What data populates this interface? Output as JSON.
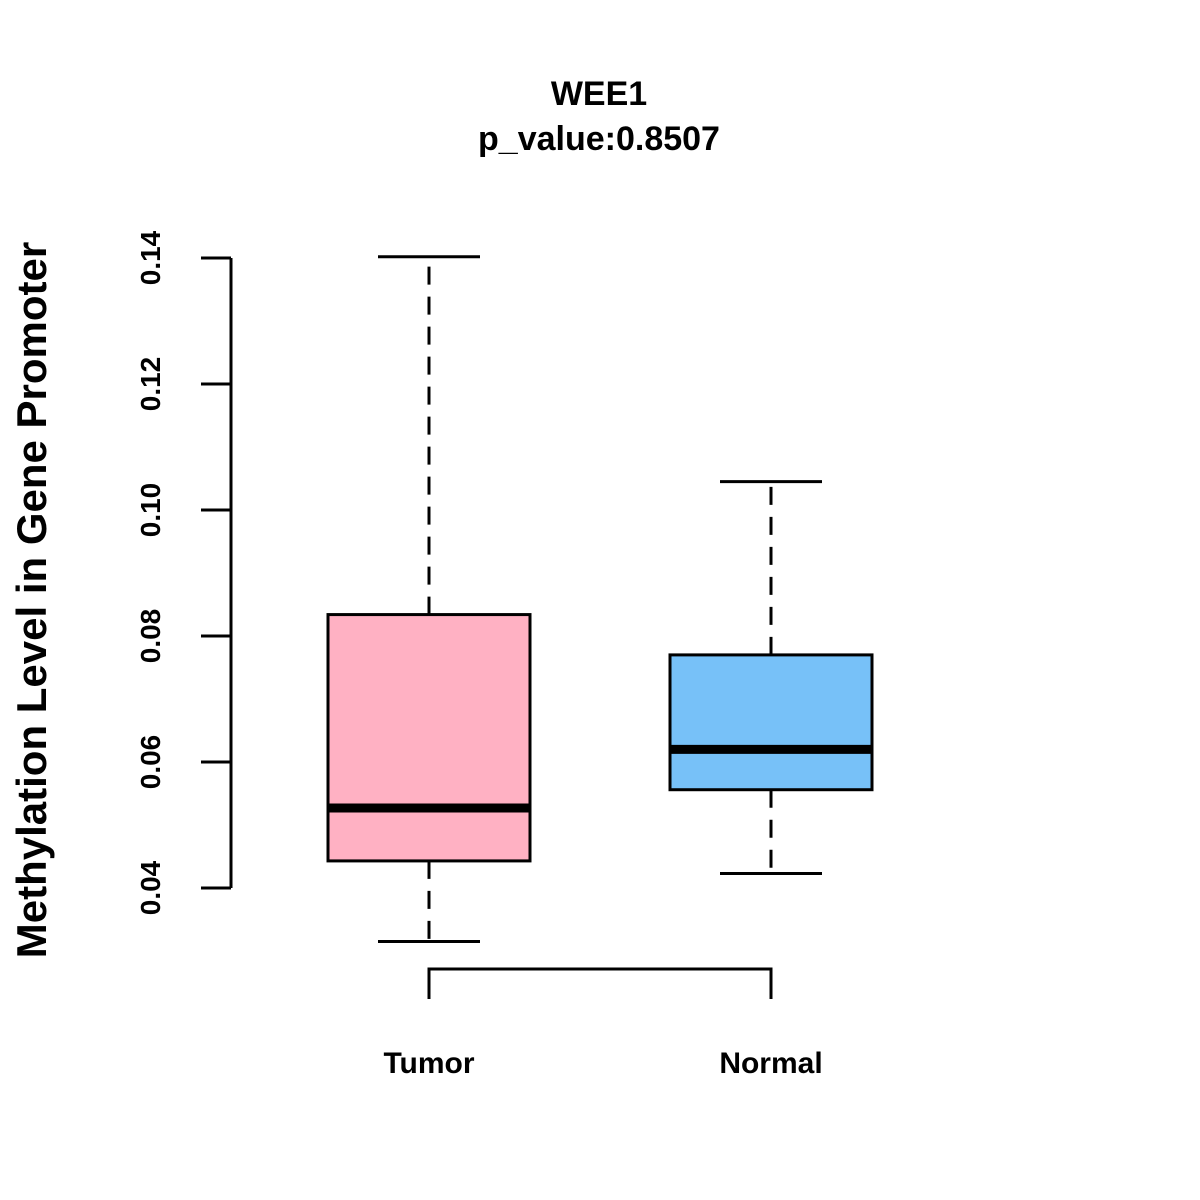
{
  "chart_data": {
    "type": "boxplot",
    "title": "WEE1",
    "subtitle": "p_value:0.8507",
    "ylabel": "Methylation Level in Gene Promoter",
    "ylim": [
      0.04,
      0.14
    ],
    "yticks": [
      0.04,
      0.06,
      0.08,
      0.1,
      0.12,
      0.14
    ],
    "ytick_labels": [
      "0.04",
      "0.06",
      "0.08",
      "0.10",
      "0.12",
      "0.14"
    ],
    "categories": [
      "Tumor",
      "Normal"
    ],
    "boxes": [
      {
        "name": "Tumor",
        "min": 0.0315,
        "q1": 0.0443,
        "median": 0.0527,
        "q3": 0.0834,
        "max": 0.1402,
        "color": "#ffb1c3"
      },
      {
        "name": "Normal",
        "min": 0.0423,
        "q1": 0.0556,
        "median": 0.062,
        "q3": 0.077,
        "max": 0.1045,
        "color": "#77c1f8"
      }
    ],
    "comparison_bracket": [
      "Tumor",
      "Normal"
    ]
  }
}
